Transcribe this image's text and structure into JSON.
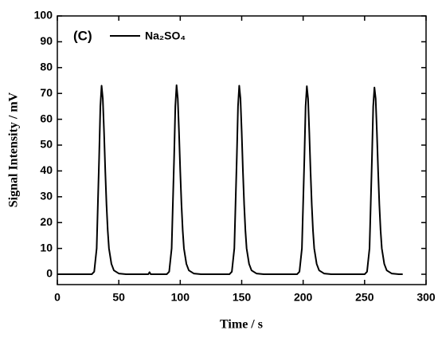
{
  "chart_data": {
    "type": "line",
    "annotation": "(C)",
    "xlabel": "Time / s",
    "ylabel": "Signal Intensity / mV",
    "xlim": [
      0,
      300
    ],
    "xticks": [
      0,
      50,
      100,
      150,
      200,
      250,
      300
    ],
    "ylim": [
      -4,
      100
    ],
    "yticks": [
      0,
      10,
      20,
      30,
      40,
      50,
      60,
      70,
      80,
      90,
      100
    ],
    "legend": "upper left",
    "x": [
      0,
      28,
      30,
      32,
      34,
      35,
      36,
      37,
      38,
      39,
      40,
      41,
      42,
      44,
      46,
      50,
      56,
      74,
      75,
      76,
      89,
      91,
      93,
      95,
      96,
      97,
      98,
      99,
      100,
      101,
      102,
      103,
      105,
      107,
      111,
      117,
      140,
      142,
      144,
      146,
      147,
      148,
      149,
      150,
      151,
      152,
      153,
      154,
      156,
      158,
      162,
      168,
      195,
      197,
      199,
      201,
      202,
      203,
      204,
      205,
      206,
      207,
      208,
      209,
      211,
      213,
      217,
      223,
      250,
      252,
      254,
      256,
      257,
      258,
      259,
      260,
      261,
      262,
      263,
      264,
      266,
      268,
      272,
      278,
      281
    ],
    "series": [
      {
        "name": "Na₂SO₄",
        "color": "#000000",
        "values": [
          0,
          0,
          1,
          10,
          45,
          65,
          73,
          68,
          55,
          40,
          27,
          17,
          10,
          4,
          1.5,
          0.3,
          0,
          0,
          0.8,
          0,
          0,
          1,
          10,
          45,
          65,
          73.2,
          68,
          55,
          40,
          27,
          17,
          10,
          4,
          1.5,
          0.3,
          0,
          0,
          1,
          10,
          45,
          65,
          73,
          68,
          55,
          40,
          27,
          17,
          10,
          4,
          1.5,
          0.3,
          0,
          0,
          1,
          10,
          45,
          65,
          72.8,
          68,
          55,
          40,
          27,
          17,
          10,
          4,
          1.5,
          0.3,
          0,
          0,
          1,
          10,
          45,
          65,
          72.3,
          68,
          55,
          40,
          27,
          17,
          10,
          4,
          1.5,
          0.3,
          0,
          0
        ]
      }
    ]
  }
}
